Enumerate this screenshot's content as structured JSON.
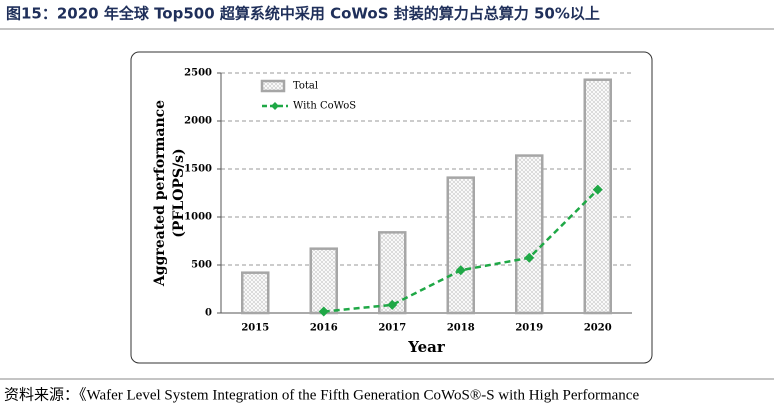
{
  "title": "图15：2020 年全球 Top500 超算系统中采用 CoWoS 封装的算力占总算力 50%以上",
  "source": "资料来源：《Wafer Level System Integration of the Fifth Generation CoWoS®-S with High Performance",
  "chart_data": {
    "type": "bar",
    "xlabel": "Year",
    "ylabel": [
      "Aggreated performance",
      "(PFLOPS/s)"
    ],
    "categories": [
      "2015",
      "2016",
      "2017",
      "2018",
      "2019",
      "2020"
    ],
    "series": [
      {
        "name": "Total",
        "type": "bar",
        "color": "#a6a6a6",
        "values": [
          420,
          670,
          840,
          1410,
          1640,
          2430
        ]
      },
      {
        "name": "With CoWoS",
        "type": "line",
        "color": "#1fa846",
        "values": [
          null,
          15,
          85,
          445,
          575,
          1285
        ]
      }
    ],
    "ylim": [
      0,
      2500
    ],
    "yticks": [
      0,
      500,
      1000,
      1500,
      2000,
      2500
    ],
    "grid": true
  }
}
